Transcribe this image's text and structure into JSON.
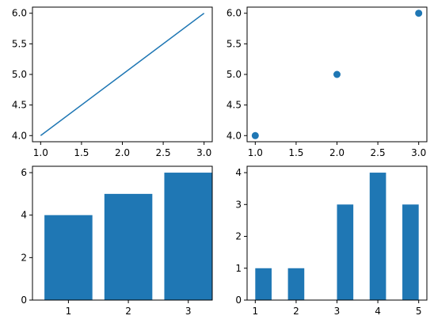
{
  "chart_data": [
    {
      "type": "line",
      "x": [
        1,
        2,
        3
      ],
      "y": [
        4,
        5,
        6
      ],
      "xlim": [
        0.9,
        3.1
      ],
      "ylim": [
        3.9,
        6.1
      ],
      "xticks": [
        1.0,
        1.5,
        2.0,
        2.5,
        3.0
      ],
      "xtick_labels": [
        "1.0",
        "1.5",
        "2.0",
        "2.5",
        "3.0"
      ],
      "yticks": [
        4.0,
        4.5,
        5.0,
        5.5,
        6.0
      ],
      "ytick_labels": [
        "4.0",
        "4.5",
        "5.0",
        "5.5",
        "6.0"
      ],
      "color": "#1f77b4",
      "grid": false
    },
    {
      "type": "scatter",
      "x": [
        1,
        2,
        3
      ],
      "y": [
        4,
        5,
        6
      ],
      "xlim": [
        0.9,
        3.1
      ],
      "ylim": [
        3.9,
        6.1
      ],
      "xticks": [
        1.0,
        1.5,
        2.0,
        2.5,
        3.0
      ],
      "xtick_labels": [
        "1.0",
        "1.5",
        "2.0",
        "2.5",
        "3.0"
      ],
      "yticks": [
        4.0,
        4.5,
        5.0,
        5.5,
        6.0
      ],
      "ytick_labels": [
        "4.0",
        "4.5",
        "5.0",
        "5.5",
        "6.0"
      ],
      "color": "#1f77b4",
      "grid": false
    },
    {
      "type": "bar",
      "x": [
        1,
        2,
        3
      ],
      "values": [
        4,
        5,
        6
      ],
      "bar_width": 0.8,
      "xlim": [
        0.4,
        3.4
      ],
      "ylim": [
        0,
        6.3
      ],
      "xticks": [
        1,
        2,
        3
      ],
      "xtick_labels": [
        "1",
        "2",
        "3"
      ],
      "yticks": [
        0,
        2,
        4,
        6
      ],
      "ytick_labels": [
        "0",
        "2",
        "4",
        "6"
      ],
      "color": "#1f77b4",
      "grid": false
    },
    {
      "type": "bar",
      "x": [
        1.2,
        2.0,
        2.8,
        3.2,
        4.0,
        4.8
      ],
      "values": [
        1,
        1,
        0,
        3,
        4,
        3
      ],
      "bar_width": 0.4,
      "xlim": [
        0.8,
        5.2
      ],
      "ylim": [
        0,
        4.2
      ],
      "xticks": [
        1,
        2,
        3,
        4,
        5
      ],
      "xtick_labels": [
        "1",
        "2",
        "3",
        "4",
        "5"
      ],
      "yticks": [
        0,
        1,
        2,
        3,
        4
      ],
      "ytick_labels": [
        "0",
        "1",
        "2",
        "3",
        "4"
      ],
      "color": "#1f77b4",
      "grid": false
    }
  ]
}
